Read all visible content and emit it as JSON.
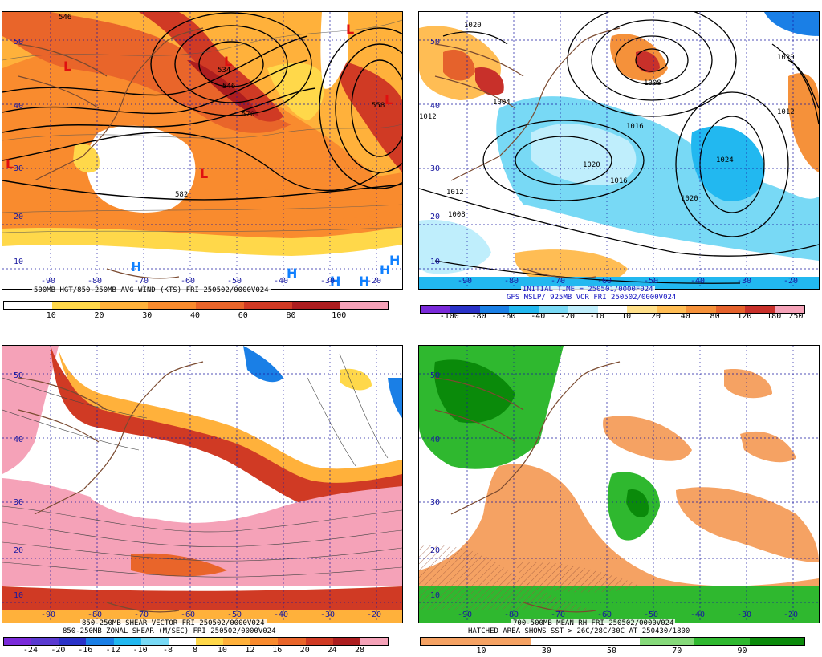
{
  "panels": [
    {
      "id": "p1",
      "caption": [
        "500MB HGT/850-250MB AVG WIND (KTS) FRI 250502/0000V024"
      ],
      "colorbar": {
        "colors": [
          "#ffffff",
          "#ffd84a",
          "#ffb13b",
          "#f98b2e",
          "#e9652a",
          "#d03a24",
          "#ad1d1f",
          "#f5a2b8"
        ],
        "labels": [
          "10",
          "20",
          "30",
          "40",
          "60",
          "80",
          "100"
        ]
      },
      "lat_labels": [
        "50",
        "40",
        "30",
        "20",
        "10"
      ],
      "lon_labels": [
        "-90",
        "-80",
        "-70",
        "-60",
        "-50",
        "-40",
        "-30",
        "-20"
      ],
      "contour_labels": [
        "546",
        "534",
        "546",
        "570",
        "558",
        "582"
      ],
      "L_labels": [
        "L",
        "L",
        "L",
        "L",
        "L",
        "L"
      ],
      "H_labels": [
        "H",
        "H",
        "H",
        "H",
        "H",
        "H"
      ]
    },
    {
      "id": "p2",
      "caption": [
        "INITIAL TIME = 250501/0000F024",
        "GFS MSLP/ 925MB VOR FRI 250502/0000V024"
      ],
      "colorbar": {
        "colors": [
          "#7a2ad9",
          "#2a32c8",
          "#1a7fe6",
          "#22b8f0",
          "#78d9f5",
          "#bfeefc",
          "#ffffff",
          "#ffe08a",
          "#ffbd54",
          "#f5913a",
          "#e5622c",
          "#c8302a",
          "#f5a2b8"
        ],
        "labels": [
          "-100",
          "-80",
          "-60",
          "-40",
          "-20",
          "-10",
          "10",
          "20",
          "40",
          "80",
          "120",
          "180",
          "250"
        ]
      },
      "lat_labels": [
        "50",
        "40",
        "30",
        "20",
        "10"
      ],
      "lon_labels": [
        "-90",
        "-80",
        "-70",
        "-60",
        "-50",
        "-40",
        "-30",
        "-20"
      ],
      "contour_labels": [
        "1020",
        "1016",
        "1012",
        "1004",
        "1008",
        "1020",
        "1024",
        "1016",
        "1020",
        "1012",
        "1008",
        "1020",
        "1012"
      ]
    },
    {
      "id": "p3",
      "caption": [
        "850-250MB SHEAR VECTOR FRI 250502/0000V024",
        "850-250MB ZONAL SHEAR (M/SEC) FRI 250502/0000V024"
      ],
      "colorbar": {
        "colors": [
          "#7a2ad9",
          "#5a3ad0",
          "#2a32c8",
          "#1a7fe6",
          "#22b8f0",
          "#78d9f5",
          "#ffffff",
          "#ffd84a",
          "#ffb13b",
          "#f98b2e",
          "#e9652a",
          "#d03a24",
          "#ad1d1f",
          "#f5a2b8"
        ],
        "labels": [
          "-24",
          "-20",
          "-16",
          "-12",
          "-10",
          "-8",
          "8",
          "10",
          "12",
          "16",
          "20",
          "24",
          "28"
        ]
      },
      "lat_labels": [
        "50",
        "40",
        "30",
        "20",
        "10"
      ],
      "lon_labels": [
        "-90",
        "-80",
        "-70",
        "-60",
        "-50",
        "-40",
        "-30",
        "-20"
      ]
    },
    {
      "id": "p4",
      "caption": [
        "700-500MB MEAN RH FRI 250502/0000V024",
        "HATCHED AREA SHOWS SST > 26C/28C/30C AT 250430/1800"
      ],
      "colorbar": {
        "colors": [
          "#f5a263",
          "#f5a263",
          "#ffffff",
          "#ffffff",
          "#86d97a",
          "#2fb82f",
          "#0a8a0a"
        ],
        "labels": [
          "10",
          "30",
          "50",
          "70",
          "90"
        ]
      },
      "lat_labels": [
        "50",
        "40",
        "30",
        "20",
        "10"
      ],
      "lon_labels": [
        "-90",
        "-80",
        "-70",
        "-60",
        "-50",
        "-40",
        "-30",
        "-20"
      ]
    }
  ]
}
